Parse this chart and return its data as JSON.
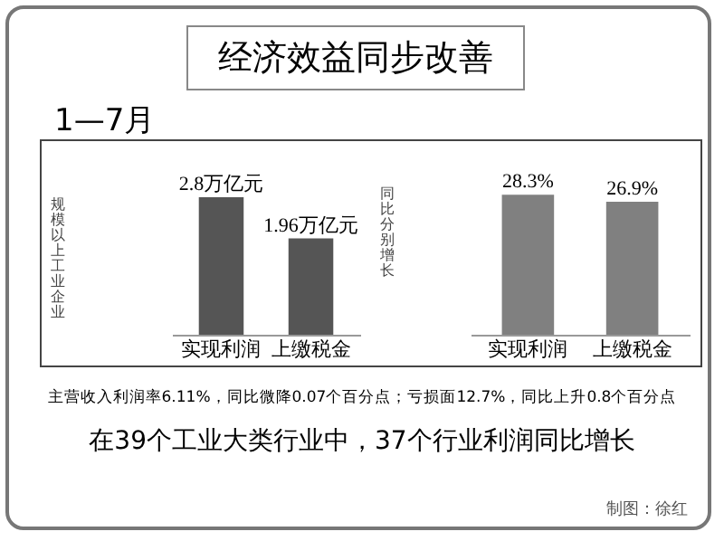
{
  "chart_data": [
    {
      "type": "bar",
      "title": "经济效益同步改善",
      "subtitle": "1—7月",
      "ylabel": "规模以上工业企业",
      "categories": [
        "实现利润",
        "上缴税金"
      ],
      "values": [
        2.8,
        1.96
      ],
      "value_labels": [
        "2.8万亿元",
        "1.96万亿元"
      ],
      "color": "#555555",
      "annotations": [
        "主营收入利润率6.11%，同比微降0.07个百分点；亏损面12.7%，同比上升0.8个百分点",
        "在39个工业大类行业中，37个行业利润同比增长",
        "制图：徐红"
      ]
    },
    {
      "type": "bar",
      "ylabel": "同比分别增长",
      "categories": [
        "实现利润",
        "上缴税金"
      ],
      "values": [
        28.3,
        26.9
      ],
      "value_labels": [
        "28.3%",
        "26.9%"
      ],
      "color": "#808080"
    }
  ]
}
